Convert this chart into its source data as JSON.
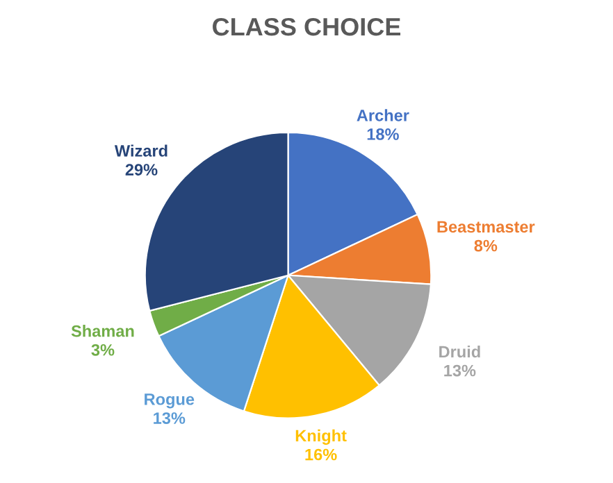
{
  "chart_data": {
    "type": "pie",
    "title": "CLASS CHOICE",
    "categories": [
      "Archer",
      "Beastmaster",
      "Druid",
      "Knight",
      "Rogue",
      "Shaman",
      "Wizard"
    ],
    "values": [
      18,
      8,
      13,
      16,
      13,
      3,
      29
    ],
    "value_labels": [
      "18%",
      "8%",
      "13%",
      "16%",
      "13%",
      "3%",
      "29%"
    ],
    "colors": [
      "#4472c4",
      "#ed7d31",
      "#a5a5a5",
      "#ffc000",
      "#5b9bd5",
      "#70ad47",
      "#264478"
    ],
    "legend": false
  }
}
